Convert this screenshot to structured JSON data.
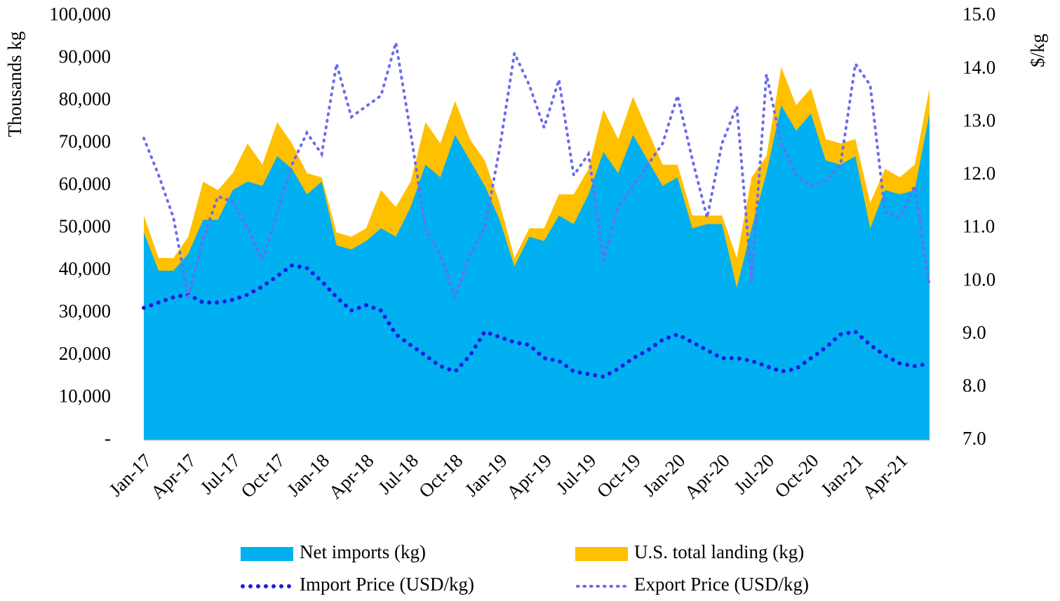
{
  "chart_data": {
    "type": "area",
    "categories": [
      "Jan-17",
      null,
      null,
      "Apr-17",
      null,
      null,
      "Jul-17",
      null,
      null,
      "Oct-17",
      null,
      null,
      "Jan-18",
      null,
      null,
      "Apr-18",
      null,
      null,
      "Jul-18",
      null,
      null,
      "Oct-18",
      null,
      null,
      "Jan-19",
      null,
      null,
      "Apr-19",
      null,
      null,
      "Jul-19",
      null,
      null,
      "Oct-19",
      null,
      null,
      "Jan-20",
      null,
      null,
      "Apr-20",
      null,
      null,
      "Jul-20",
      null,
      null,
      "Oct-20",
      null,
      null,
      "Jan-21",
      null,
      null,
      "Apr-21",
      null,
      null
    ],
    "y_label": "Thousands kg",
    "y2_label": "$/kg",
    "ylim": [
      0,
      100000
    ],
    "yticks": [
      {
        "value": 0,
        "label": "-"
      },
      {
        "value": 10000,
        "label": "10,000"
      },
      {
        "value": 20000,
        "label": "20,000"
      },
      {
        "value": 30000,
        "label": "30,000"
      },
      {
        "value": 40000,
        "label": "40,000"
      },
      {
        "value": 50000,
        "label": "50,000"
      },
      {
        "value": 60000,
        "label": "60,000"
      },
      {
        "value": 70000,
        "label": "70,000"
      },
      {
        "value": 80000,
        "label": "80,000"
      },
      {
        "value": 90000,
        "label": "90,000"
      },
      {
        "value": 100000,
        "label": "100,000"
      }
    ],
    "y2lim": [
      7,
      15
    ],
    "y2ticks": [
      {
        "value": 7,
        "label": "7.0"
      },
      {
        "value": 8,
        "label": "8.0"
      },
      {
        "value": 9,
        "label": "9.0"
      },
      {
        "value": 10,
        "label": "10.0"
      },
      {
        "value": 11,
        "label": "11.0"
      },
      {
        "value": 12,
        "label": "12.0"
      },
      {
        "value": 13,
        "label": "13.0"
      },
      {
        "value": 14,
        "label": "14.0"
      },
      {
        "value": 15,
        "label": "15.0"
      }
    ],
    "stacked": true,
    "series": [
      {
        "name": "Net imports (kg)",
        "type": "area",
        "color": "#00b0f0",
        "values": [
          49000,
          40000,
          40000,
          44000,
          52000,
          52000,
          59000,
          61000,
          60000,
          67000,
          64000,
          58000,
          61000,
          46000,
          45000,
          47000,
          50000,
          48000,
          55000,
          65000,
          62000,
          72000,
          66000,
          60000,
          52000,
          41000,
          48000,
          47000,
          53000,
          51000,
          58000,
          68000,
          63000,
          72000,
          66000,
          60000,
          62000,
          50000,
          51000,
          51000,
          36000,
          50000,
          63000,
          79000,
          73000,
          77000,
          66000,
          65000,
          67000,
          50000,
          59000,
          58000,
          59000,
          77000
        ]
      },
      {
        "name": "U.S. total landing (kg)",
        "type": "area",
        "color": "#ffc000",
        "values": [
          4000,
          3000,
          3000,
          4000,
          9000,
          7000,
          4000,
          9000,
          5000,
          8000,
          6000,
          5000,
          1000,
          3000,
          3000,
          3000,
          9000,
          7000,
          6000,
          10000,
          8000,
          8000,
          5000,
          6000,
          4000,
          2000,
          2000,
          3000,
          5000,
          7000,
          6000,
          10000,
          8000,
          9000,
          7000,
          5000,
          3000,
          3000,
          2000,
          2000,
          7000,
          12000,
          4000,
          9000,
          6000,
          6000,
          5000,
          5000,
          4000,
          6000,
          5000,
          4000,
          6000,
          6000
        ]
      },
      {
        "name": "Import Price (USD/kg)",
        "type": "line",
        "axis": "y2",
        "color": "#1c1ce0",
        "values": [
          9.5,
          9.6,
          9.7,
          9.75,
          9.6,
          9.6,
          9.65,
          9.75,
          9.9,
          10.1,
          10.3,
          10.25,
          10.0,
          9.7,
          9.45,
          9.55,
          9.45,
          9.0,
          8.8,
          8.6,
          8.4,
          8.3,
          8.6,
          9.05,
          8.95,
          8.85,
          8.8,
          8.55,
          8.5,
          8.3,
          8.25,
          8.2,
          8.35,
          8.55,
          8.7,
          8.9,
          9.0,
          8.85,
          8.7,
          8.55,
          8.55,
          8.5,
          8.4,
          8.3,
          8.35,
          8.55,
          8.75,
          9.0,
          9.05,
          8.8,
          8.6,
          8.45,
          8.4,
          8.45
        ]
      },
      {
        "name": "Export Price (USD/kg)",
        "type": "line",
        "axis": "y2",
        "color": "#6b6bf0",
        "values": [
          12.7,
          12.0,
          11.2,
          9.7,
          10.8,
          11.6,
          11.5,
          11.0,
          10.4,
          11.3,
          12.2,
          12.8,
          12.4,
          14.1,
          13.1,
          13.3,
          13.5,
          14.5,
          12.8,
          11.0,
          10.5,
          9.7,
          10.5,
          11.0,
          12.5,
          14.3,
          13.7,
          12.9,
          13.8,
          12.0,
          12.4,
          10.4,
          11.4,
          11.8,
          12.2,
          12.6,
          13.5,
          12.3,
          11.2,
          12.6,
          13.3,
          10.0,
          13.9,
          12.6,
          12.0,
          11.8,
          11.9,
          12.2,
          14.1,
          13.7,
          11.3,
          11.2,
          11.8,
          9.9
        ]
      }
    ]
  }
}
